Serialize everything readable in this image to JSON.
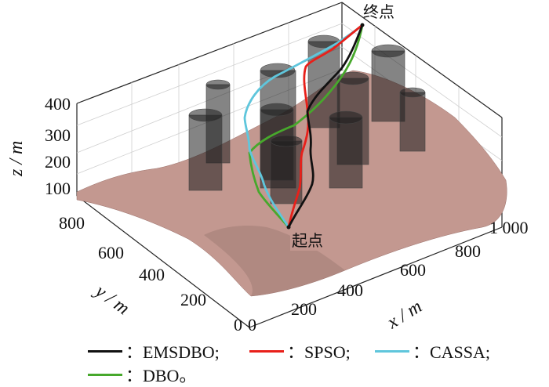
{
  "chart_data": {
    "type": "3d-surface-path",
    "title": "",
    "xlabel": "x / m",
    "ylabel": "y / m",
    "zlabel": "z / m",
    "xlim": [
      0,
      1000
    ],
    "ylim": [
      0,
      900
    ],
    "zlim": [
      0,
      400
    ],
    "x_ticks": [
      "0",
      "200",
      "400",
      "600",
      "800",
      "1 000"
    ],
    "y_ticks": [
      "0",
      "200",
      "400",
      "600",
      "800"
    ],
    "z_ticks": [
      "100",
      "200",
      "300",
      "400"
    ],
    "start_label": "起点",
    "end_label": "终点",
    "colors": {
      "EMSDBO": "#111111",
      "SPSO": "#e8201a",
      "CASSA": "#5fc6dc",
      "DBO": "#47a82c",
      "terrain": "#c99b93",
      "obstacle": "#2a2a2a"
    },
    "series": [
      {
        "name": "EMSDBO",
        "label": "：EMSDBO;",
        "start": [
          330,
          480,
          60
        ],
        "end": [
          900,
          920,
          330
        ]
      },
      {
        "name": "SPSO",
        "label": "：SPSO;",
        "start": [
          330,
          480,
          60
        ],
        "end": [
          900,
          920,
          330
        ]
      },
      {
        "name": "CASSA",
        "label": "：CASSA;",
        "start": [
          330,
          480,
          60
        ],
        "end": [
          900,
          920,
          330
        ]
      },
      {
        "name": "DBO",
        "label": "：DBO。",
        "start": [
          330,
          480,
          60
        ],
        "end": [
          900,
          920,
          330
        ]
      }
    ]
  }
}
